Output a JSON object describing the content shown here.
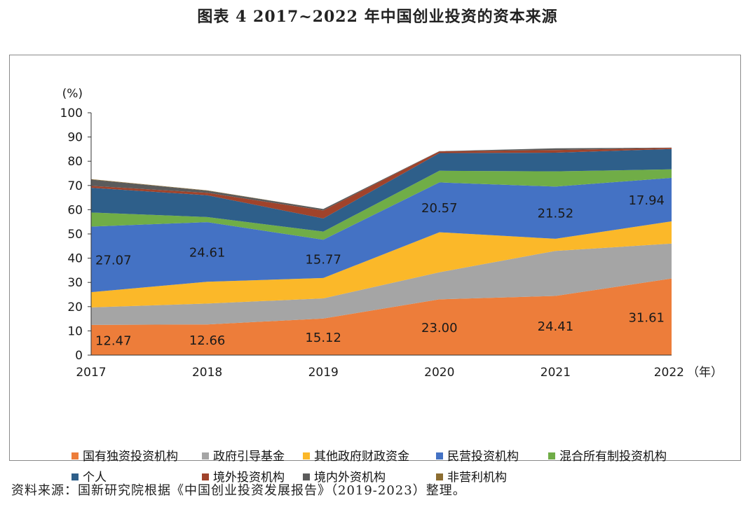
{
  "title": "图表 4   2017~2022 年中国创业投资的资本来源",
  "source_note": "资料来源：国新研究院根据《中国创业投资发展报告》（2019-2023）整理。",
  "chart_data": {
    "type": "area",
    "stacked": true,
    "x": [
      "2017",
      "2018",
      "2019",
      "2020",
      "2021",
      "2022"
    ],
    "x_unit_label": "（年）",
    "y_unit_label": "(%)",
    "ylim": [
      0,
      100
    ],
    "yticks": [
      0,
      10,
      20,
      30,
      40,
      50,
      60,
      70,
      80,
      90,
      100
    ],
    "grid": false,
    "legend_position": "bottom",
    "series": [
      {
        "name": "国有独资投资机构",
        "color": "#ED7D3A",
        "values": [
          12.47,
          12.66,
          15.12,
          23.0,
          24.41,
          31.61
        ]
      },
      {
        "name": "政府引导基金",
        "color": "#A5A5A5",
        "values": [
          7.2,
          8.6,
          8.3,
          11.2,
          18.6,
          14.4
        ]
      },
      {
        "name": "其他政府财政资金",
        "color": "#FBB829",
        "values": [
          6.3,
          9.0,
          8.4,
          16.5,
          5.0,
          9.2
        ]
      },
      {
        "name": "民营投资机构",
        "color": "#4472C4",
        "values": [
          27.07,
          24.61,
          15.77,
          20.57,
          21.52,
          17.94
        ]
      },
      {
        "name": "混合所有制投资机构",
        "color": "#70AD47",
        "values": [
          5.8,
          2.1,
          3.4,
          4.8,
          6.3,
          3.5
        ]
      },
      {
        "name": "个人",
        "color": "#2E5F8A",
        "values": [
          10.2,
          9.0,
          5.4,
          7.3,
          7.7,
          8.4
        ]
      },
      {
        "name": "境外投资机构",
        "color": "#A0432B",
        "values": [
          0.8,
          1.0,
          3.3,
          0.7,
          1.1,
          0.5
        ]
      },
      {
        "name": "境内外资机构",
        "color": "#5B5B5B",
        "values": [
          2.6,
          0.9,
          0.6,
          0.1,
          0.7,
          0.1
        ]
      },
      {
        "name": "非营利机构",
        "color": "#8C6D31",
        "values": [
          0.2,
          0.1,
          0.0,
          0.0,
          0.0,
          0.0
        ]
      }
    ],
    "annotations": [
      {
        "series": "国有独资投资机构",
        "labels": [
          "12.47",
          "12.66",
          "15.12",
          "23.00",
          "24.41",
          "31.61"
        ]
      },
      {
        "series": "民营投资机构",
        "labels": [
          "27.07",
          "24.61",
          "15.77",
          "20.57",
          "21.52",
          "17.94"
        ]
      }
    ]
  }
}
